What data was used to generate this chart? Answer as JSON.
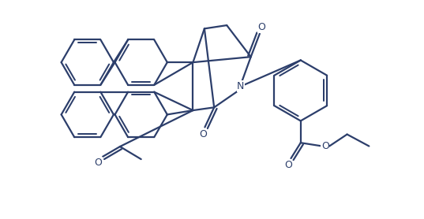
{
  "bg_color": "#ffffff",
  "line_color": "#2c3e6b",
  "line_width": 1.6,
  "fig_width": 5.37,
  "fig_height": 2.78,
  "dpi": 100,
  "xlim": [
    0,
    10
  ],
  "ylim": [
    0,
    5.2
  ]
}
